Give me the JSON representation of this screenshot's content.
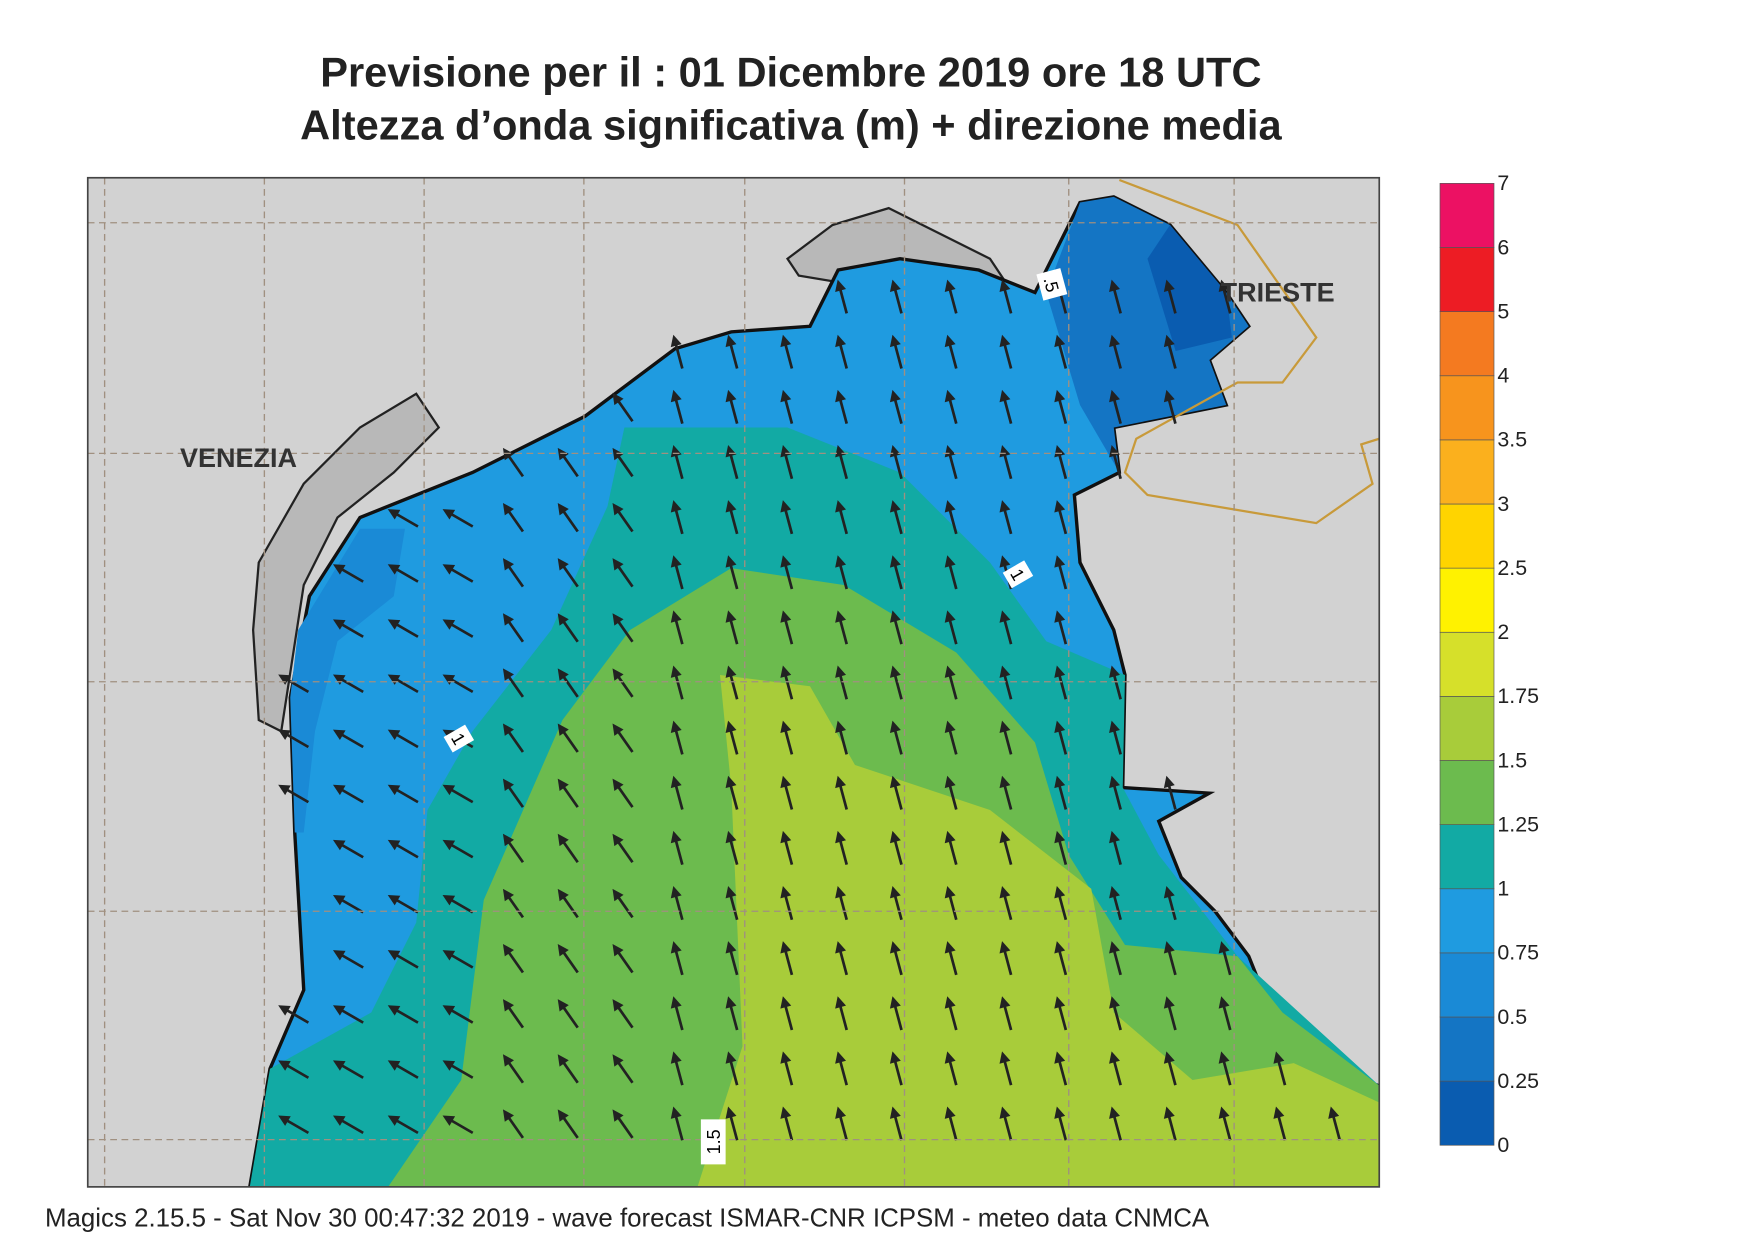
{
  "header": {
    "title": "Previsione per il  :  01 Dicembre  2019   ore 18 UTC",
    "subtitle": "Altezza d’onda significativa (m) + direzione media"
  },
  "places": [
    "VENEZIA",
    "TRIESTE"
  ],
  "contour_labels": [
    "1",
    "1",
    ".5",
    "1.5"
  ],
  "colorbar": {
    "levels": [
      0,
      0.25,
      0.5,
      0.75,
      1,
      1.25,
      1.5,
      1.75,
      2,
      2.5,
      3,
      3.5,
      4,
      5,
      6,
      7
    ],
    "colors": [
      "#0a5cb0",
      "#1475c4",
      "#1a8ad6",
      "#1f9be0",
      "#12aaa4",
      "#6cbb4e",
      "#a8cc3a",
      "#d6e02a",
      "#fff200",
      "#ffd400",
      "#fbb01d",
      "#f7941d",
      "#f47a20",
      "#ed1c24",
      "#ec1163"
    ]
  },
  "footer": "Magics 2.15.5 - Sat Nov 30 00:47:32 2019 - wave forecast  ISMAR-CNR  ICPSM - meteo data   CNMCA"
}
